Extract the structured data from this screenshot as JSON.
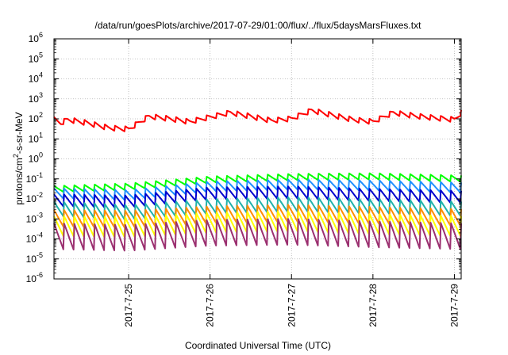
{
  "chart_data": {
    "type": "line",
    "title": "/data/run/goesPlots/archive/2017-07-29/01:00/flux/../flux/5daysMarsFluxes.txt",
    "xlabel": "Coordinated Universal Time (UTC)",
    "ylabel": "protons/cm2-s-sr-MeV",
    "ylabel_base": "protons/cm",
    "ylabel_sup": "2",
    "ylabel_rest": "-s-sr-MeV",
    "x_range": [
      "2017-07-24T02:00",
      "2017-07-29T02:00"
    ],
    "x_ticks": [
      {
        "label": "2017-7-25",
        "date": "2017-07-25T00:00"
      },
      {
        "label": "2017-7-26",
        "date": "2017-07-26T00:00"
      },
      {
        "label": "2017-7-27",
        "date": "2017-07-27T00:00"
      },
      {
        "label": "2017-7-28",
        "date": "2017-07-28T00:00"
      },
      {
        "label": "2017-7-29",
        "date": "2017-07-29T00:00"
      }
    ],
    "y_scale": "log",
    "y_range": [
      1e-06,
      1000000.0
    ],
    "y_ticks": [
      {
        "base": "10",
        "exp": "-6",
        "value": 1e-06
      },
      {
        "base": "10",
        "exp": "-5",
        "value": 1e-05
      },
      {
        "base": "10",
        "exp": "-4",
        "value": 0.0001
      },
      {
        "base": "10",
        "exp": "-3",
        "value": 0.001
      },
      {
        "base": "10",
        "exp": "-2",
        "value": 0.01
      },
      {
        "base": "10",
        "exp": "-1",
        "value": 0.1
      },
      {
        "base": "10",
        "exp": "0",
        "value": 1
      },
      {
        "base": "10",
        "exp": "1",
        "value": 10
      },
      {
        "base": "10",
        "exp": "2",
        "value": 100
      },
      {
        "base": "10",
        "exp": "3",
        "value": 1000
      },
      {
        "base": "10",
        "exp": "4",
        "value": 10000
      },
      {
        "base": "10",
        "exp": "5",
        "value": 100000
      },
      {
        "base": "10",
        "exp": "6",
        "value": 1000000
      }
    ],
    "grid": true,
    "series": [
      {
        "color": "#ff0000",
        "x": [
          "2017-07-24T02:00",
          "2017-07-24T04:00",
          "2017-07-24T06:00",
          "2017-07-24T12:00",
          "2017-07-24T18:00",
          "2017-07-25T00:00",
          "2017-07-25T06:00",
          "2017-07-25T12:00",
          "2017-07-25T18:00",
          "2017-07-26T00:00",
          "2017-07-26T06:00",
          "2017-07-26T12:00",
          "2017-07-26T18:00",
          "2017-07-27T00:00",
          "2017-07-27T06:00",
          "2017-07-27T12:00",
          "2017-07-27T18:00",
          "2017-07-28T00:00",
          "2017-07-28T06:00",
          "2017-07-28T12:00",
          "2017-07-28T18:00",
          "2017-07-29T00:00",
          "2017-07-29T02:00"
        ],
        "y": [
          90,
          60,
          90,
          60,
          35,
          30,
          130,
          100,
          70,
          120,
          200,
          130,
          80,
          100,
          260,
          150,
          90,
          70,
          200,
          140,
          110,
          90,
          200
        ],
        "spike_amp": 1.9
      },
      {
        "color": "#00ff00",
        "x": [
          "2017-07-24T02:00",
          "2017-07-25T00:00",
          "2017-07-26T00:00",
          "2017-07-27T00:00",
          "2017-07-28T00:00",
          "2017-07-29T02:00"
        ],
        "y": [
          0.03,
          0.04,
          0.09,
          0.12,
          0.13,
          0.1
        ],
        "spike_amp": 2.2
      },
      {
        "color": "#1e90ff",
        "x": [
          "2017-07-24T02:00",
          "2017-07-25T00:00",
          "2017-07-26T00:00",
          "2017-07-27T00:00",
          "2017-07-28T00:00",
          "2017-07-29T02:00"
        ],
        "y": [
          0.018,
          0.015,
          0.04,
          0.05,
          0.045,
          0.035
        ],
        "spike_amp": 3.5
      },
      {
        "color": "#0000cd",
        "x": [
          "2017-07-24T02:00",
          "2017-07-25T00:00",
          "2017-07-26T00:00",
          "2017-07-27T00:00",
          "2017-07-28T00:00",
          "2017-07-29T02:00"
        ],
        "y": [
          0.008,
          0.007,
          0.018,
          0.02,
          0.015,
          0.012
        ],
        "spike_amp": 4.5
      },
      {
        "color": "#20b2aa",
        "x": [
          "2017-07-24T02:00",
          "2017-07-25T00:00",
          "2017-07-26T00:00",
          "2017-07-27T00:00",
          "2017-07-28T00:00",
          "2017-07-29T02:00"
        ],
        "y": [
          0.003,
          0.002,
          0.004,
          0.005,
          0.004,
          0.003
        ],
        "spike_amp": 6
      },
      {
        "color": "#ff8c00",
        "x": [
          "2017-07-24T02:00",
          "2017-07-25T00:00",
          "2017-07-26T00:00",
          "2017-07-27T00:00",
          "2017-07-28T00:00",
          "2017-07-29T02:00"
        ],
        "y": [
          0.001,
          0.0009,
          0.0015,
          0.0018,
          0.0014,
          0.0011
        ],
        "spike_amp": 8
      },
      {
        "color": "#ffff00",
        "x": [
          "2017-07-24T02:00",
          "2017-07-25T00:00",
          "2017-07-26T00:00",
          "2017-07-27T00:00",
          "2017-07-28T00:00",
          "2017-07-29T02:00"
        ],
        "y": [
          0.0004,
          0.00035,
          0.0006,
          0.0007,
          0.0005,
          0.0004
        ],
        "spike_amp": 12
      },
      {
        "color": "#9b3070",
        "x": [
          "2017-07-24T02:00",
          "2017-07-25T00:00",
          "2017-07-26T00:00",
          "2017-07-27T00:00",
          "2017-07-28T00:00",
          "2017-07-29T02:00"
        ],
        "y": [
          0.00012,
          0.0001,
          0.00018,
          0.0002,
          0.00015,
          0.00012
        ],
        "spike_amp": 25
      }
    ]
  }
}
